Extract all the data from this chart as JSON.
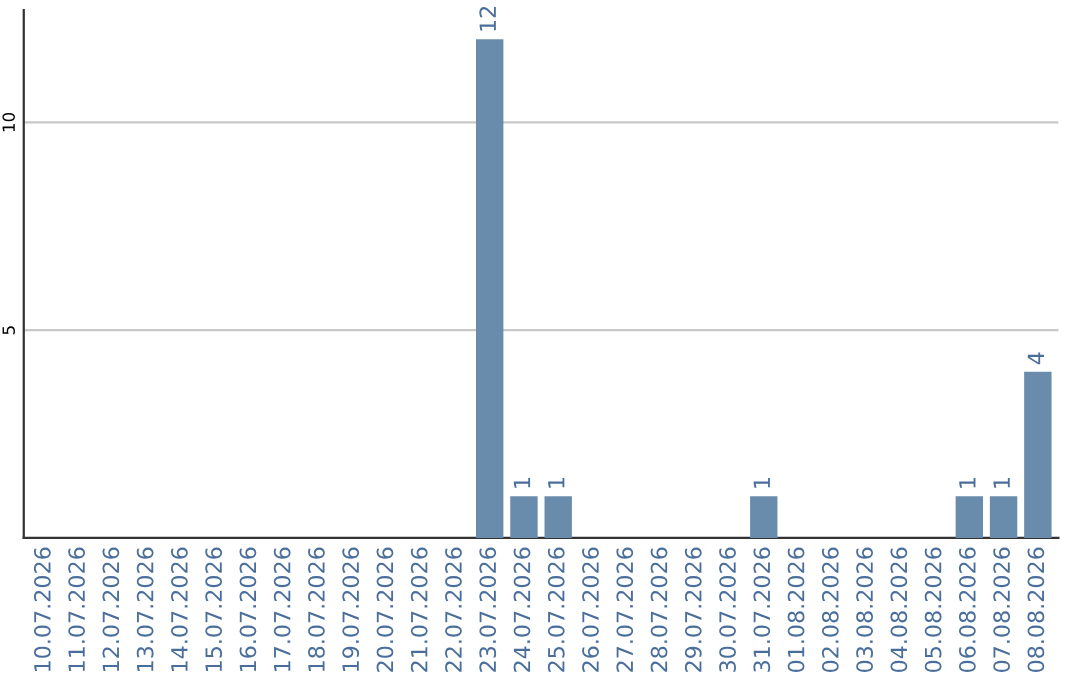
{
  "chart_data": {
    "type": "bar",
    "categories": [
      "10.07.2026",
      "11.07.2026",
      "12.07.2026",
      "13.07.2026",
      "14.07.2026",
      "15.07.2026",
      "16.07.2026",
      "17.07.2026",
      "18.07.2026",
      "19.07.2026",
      "20.07.2026",
      "21.07.2026",
      "22.07.2026",
      "23.07.2026",
      "24.07.2026",
      "25.07.2026",
      "26.07.2026",
      "27.07.2026",
      "28.07.2026",
      "29.07.2026",
      "30.07.2026",
      "31.07.2026",
      "01.08.2026",
      "02.08.2026",
      "03.08.2026",
      "04.08.2026",
      "05.08.2026",
      "06.08.2026",
      "07.08.2026",
      "08.08.2026"
    ],
    "values": [
      0,
      0,
      0,
      0,
      0,
      0,
      0,
      0,
      0,
      0,
      0,
      0,
      0,
      12,
      1,
      1,
      0,
      0,
      0,
      0,
      0,
      1,
      0,
      0,
      0,
      0,
      0,
      1,
      1,
      4
    ],
    "value_labels": [
      null,
      null,
      null,
      null,
      null,
      null,
      null,
      null,
      null,
      null,
      null,
      null,
      null,
      "12",
      "1",
      "1",
      null,
      null,
      null,
      null,
      null,
      "1",
      null,
      null,
      null,
      null,
      null,
      "1",
      "1",
      "4"
    ],
    "color": "#6a8cac",
    "ylim": [
      0,
      12.7
    ],
    "yticks": [
      5,
      10
    ],
    "grid": "y"
  }
}
